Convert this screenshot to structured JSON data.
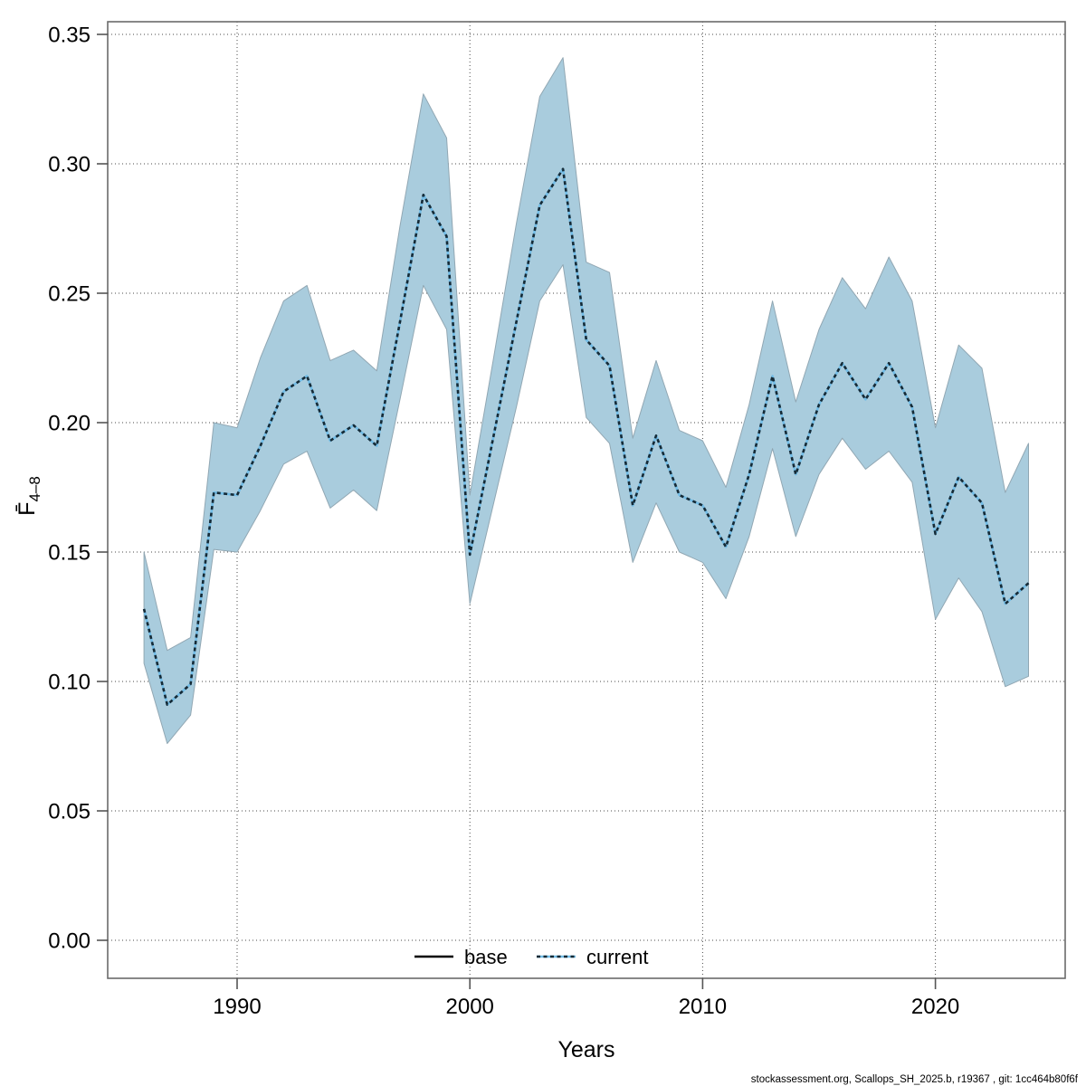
{
  "window": {
    "footer": "stockassessment.org, Scallops_SH_2025.b, r19367 , git: 1cc464b80f6f"
  },
  "chart_data": {
    "type": "line",
    "title": "",
    "xlabel": "Years",
    "ylabel": "F̄4–8",
    "ylabel_main": "F̄",
    "ylabel_sub": "4–8",
    "xlim": [
      1984.4,
      2025.6
    ],
    "ylim": [
      0,
      0.35
    ],
    "x_ticks": [
      1990,
      2000,
      2010,
      2020
    ],
    "y_ticks": [
      0.0,
      0.05,
      0.1,
      0.15,
      0.2,
      0.25,
      0.3,
      0.35
    ],
    "grid": true,
    "legend": {
      "position": "bottom-center",
      "entries": [
        {
          "label": "base",
          "style": "solid",
          "color": "#000000"
        },
        {
          "label": "current",
          "style": "dotted",
          "color": "#72BCE6"
        }
      ]
    },
    "years": [
      1986,
      1987,
      1988,
      1989,
      1990,
      1991,
      1992,
      1993,
      1994,
      1995,
      1996,
      1997,
      1998,
      1999,
      2000,
      2001,
      2002,
      2003,
      2004,
      2005,
      2006,
      2007,
      2008,
      2009,
      2010,
      2011,
      2012,
      2013,
      2014,
      2015,
      2016,
      2017,
      2018,
      2019,
      2020,
      2021,
      2022,
      2023,
      2024
    ],
    "series": [
      {
        "name": "base",
        "values": [
          0.128,
          0.091,
          0.099,
          0.173,
          0.172,
          0.191,
          0.212,
          0.218,
          0.193,
          0.199,
          0.191,
          0.239,
          0.288,
          0.272,
          0.149,
          0.194,
          0.239,
          0.284,
          0.298,
          0.232,
          0.222,
          0.168,
          0.195,
          0.172,
          0.168,
          0.152,
          0.18,
          0.218,
          0.18,
          0.207,
          0.223,
          0.209,
          0.223,
          0.206,
          0.157,
          0.179,
          0.169,
          0.13,
          0.138
        ]
      },
      {
        "name": "current",
        "values": [
          0.128,
          0.091,
          0.099,
          0.173,
          0.172,
          0.191,
          0.212,
          0.218,
          0.193,
          0.199,
          0.191,
          0.239,
          0.288,
          0.272,
          0.149,
          0.194,
          0.239,
          0.284,
          0.298,
          0.232,
          0.222,
          0.168,
          0.195,
          0.172,
          0.168,
          0.152,
          0.18,
          0.218,
          0.18,
          0.207,
          0.223,
          0.209,
          0.223,
          0.206,
          0.157,
          0.179,
          0.169,
          0.13,
          0.138
        ]
      }
    ],
    "band": {
      "label": "confidence-interval",
      "lo": [
        0.107,
        0.076,
        0.087,
        0.151,
        0.15,
        0.166,
        0.184,
        0.189,
        0.167,
        0.174,
        0.166,
        0.209,
        0.253,
        0.236,
        0.13,
        0.168,
        0.206,
        0.247,
        0.261,
        0.202,
        0.192,
        0.146,
        0.169,
        0.15,
        0.146,
        0.132,
        0.156,
        0.19,
        0.156,
        0.18,
        0.194,
        0.182,
        0.189,
        0.177,
        0.124,
        0.14,
        0.127,
        0.098,
        0.102
      ],
      "hi": [
        0.15,
        0.112,
        0.117,
        0.2,
        0.198,
        0.225,
        0.247,
        0.253,
        0.224,
        0.228,
        0.22,
        0.276,
        0.327,
        0.31,
        0.172,
        0.224,
        0.277,
        0.326,
        0.341,
        0.262,
        0.258,
        0.194,
        0.224,
        0.197,
        0.193,
        0.175,
        0.207,
        0.247,
        0.208,
        0.236,
        0.256,
        0.244,
        0.264,
        0.247,
        0.198,
        0.23,
        0.221,
        0.173,
        0.192
      ]
    },
    "colors": {
      "band_fill": "#A9CCDD",
      "band_border": "#91A7B3",
      "current_dark": "#152A36",
      "current_light": "#72BCE6",
      "base_line": "#000000",
      "grid": "#4a4a4a",
      "frame": "#6b6b6b",
      "tick": "#555555",
      "text": "#000000"
    }
  }
}
